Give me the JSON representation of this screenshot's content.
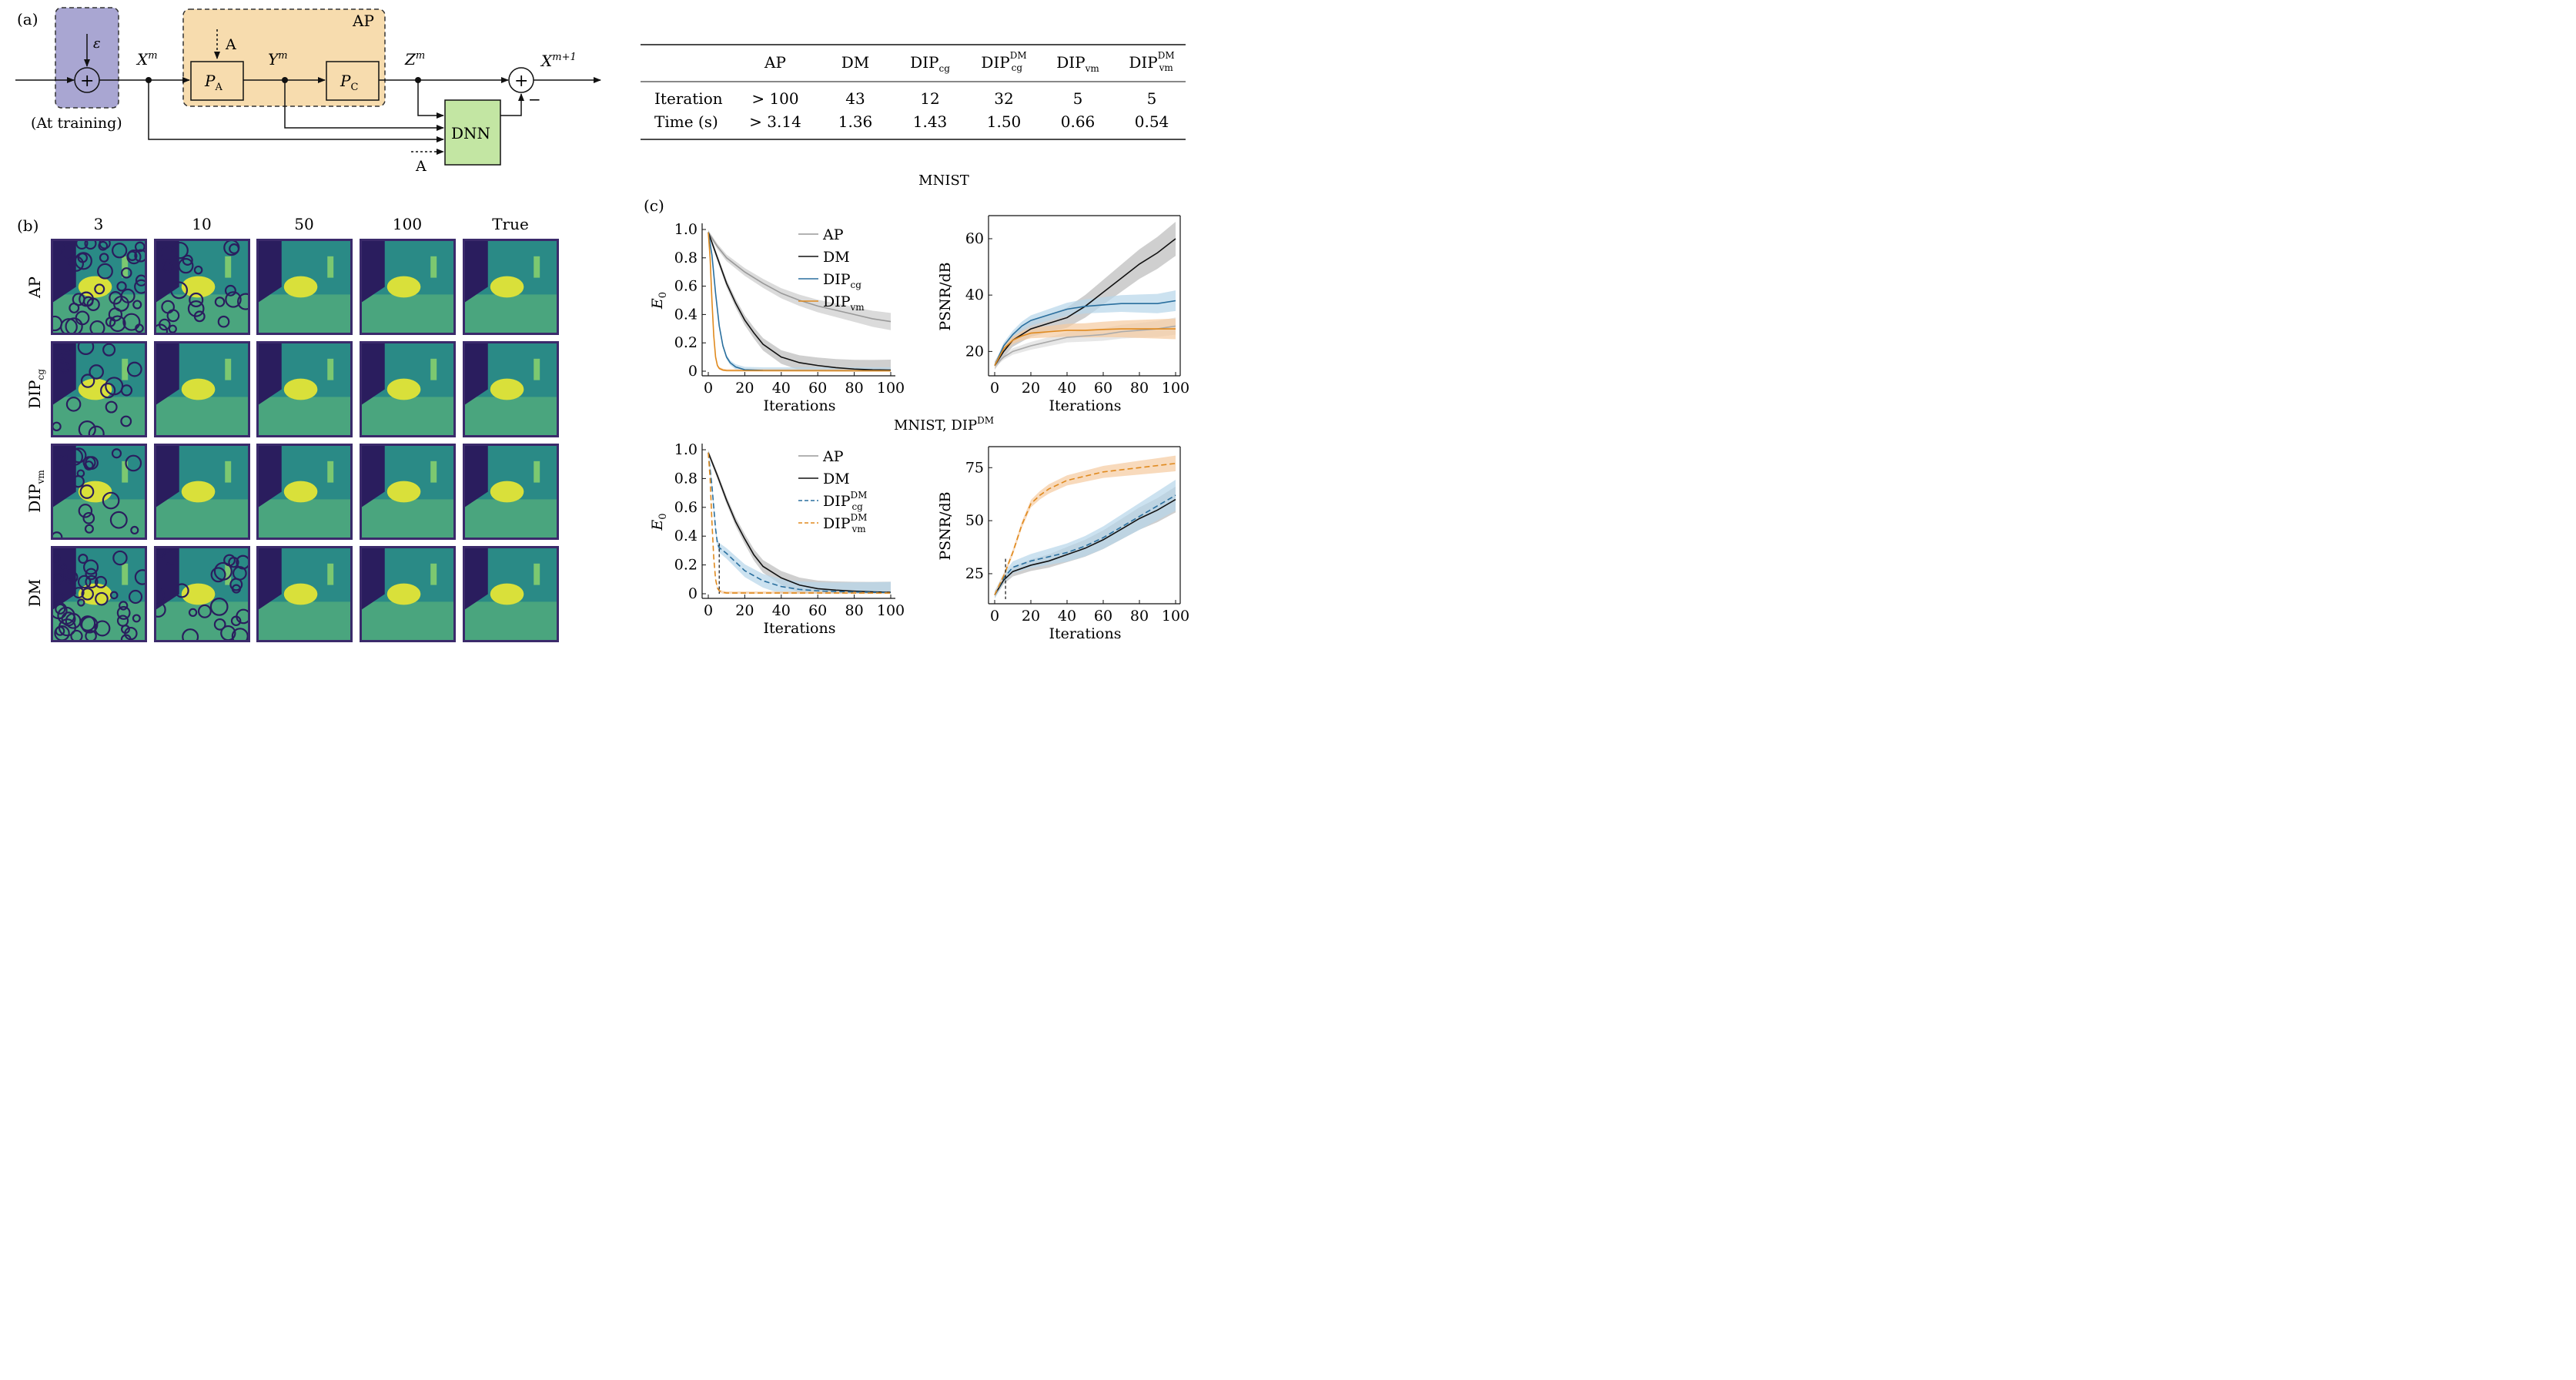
{
  "panel_labels": {
    "a": "(a)",
    "b": "(b)",
    "c": "(c)"
  },
  "diagram": {
    "epsilon": "ε",
    "training_note": "(At training)",
    "ap_box": "AP",
    "a_top": "A",
    "a_bottom": "A",
    "pa": "P",
    "pa_sub": "A",
    "pc": "P",
    "pc_sub": "C",
    "dnn": "DNN",
    "xm": "X",
    "xm_sup": "m",
    "ym": "Y",
    "ym_sup": "m",
    "zm": "Z",
    "zm_sup": "m",
    "xm1": "X",
    "xm1_sup": "m+1",
    "plus": "+",
    "minus": "−"
  },
  "table": {
    "headers": [
      "AP",
      "DM",
      "DIPcg",
      "DIPcgDM",
      "DIPvm",
      "DIPvmDM"
    ],
    "rows": [
      {
        "label": "Iteration",
        "values": [
          "> 100",
          "43",
          "12",
          "32",
          "5",
          "5"
        ]
      },
      {
        "label": "Time (s)",
        "values": [
          "> 3.14",
          "1.36",
          "1.43",
          "1.50",
          "0.66",
          "0.54"
        ]
      }
    ]
  },
  "grid": {
    "cols": [
      "3",
      "10",
      "50",
      "100",
      "True"
    ],
    "rows": [
      "AP",
      "DIPcg",
      "DIPvm",
      "DM"
    ]
  },
  "titles": {
    "top": "MNIST",
    "bottom": "MNIST, DIP"
  },
  "chart_data": [
    {
      "type": "line",
      "title": "MNIST",
      "xlabel": "Iterations",
      "ylabel": "E0",
      "xlim": [
        0,
        100
      ],
      "ylim": [
        0,
        1.0
      ],
      "xticks": [
        "0",
        "20",
        "40",
        "60",
        "80",
        "100"
      ],
      "yticks": [
        "0",
        "0.2",
        "0.4",
        "0.6",
        "0.8",
        "1.0"
      ],
      "legend": "top-right",
      "series": [
        {
          "name": "AP",
          "color": "#999999",
          "x": [
            0,
            5,
            10,
            20,
            30,
            40,
            50,
            60,
            70,
            80,
            90,
            100
          ],
          "y": [
            0.98,
            0.88,
            0.8,
            0.7,
            0.62,
            0.55,
            0.5,
            0.46,
            0.43,
            0.4,
            0.37,
            0.35
          ]
        },
        {
          "name": "DM",
          "color": "#111111",
          "x": [
            0,
            5,
            10,
            15,
            20,
            25,
            30,
            40,
            50,
            60,
            70,
            80,
            90,
            100
          ],
          "y": [
            0.98,
            0.8,
            0.62,
            0.48,
            0.36,
            0.27,
            0.19,
            0.1,
            0.06,
            0.04,
            0.025,
            0.015,
            0.01,
            0.008
          ]
        },
        {
          "name": "DIPcg",
          "color": "#2a6f9e",
          "x": [
            0,
            2,
            4,
            6,
            8,
            10,
            12,
            15,
            20,
            30,
            100
          ],
          "y": [
            0.98,
            0.82,
            0.55,
            0.32,
            0.18,
            0.1,
            0.06,
            0.03,
            0.01,
            0.005,
            0.003
          ]
        },
        {
          "name": "DIPvm",
          "color": "#e08a1e",
          "x": [
            0,
            1,
            2,
            3,
            4,
            5,
            6,
            8,
            10,
            100
          ],
          "y": [
            0.98,
            0.8,
            0.5,
            0.25,
            0.1,
            0.04,
            0.02,
            0.008,
            0.004,
            0.002
          ]
        }
      ]
    },
    {
      "type": "line",
      "xlabel": "Iterations",
      "ylabel": "PSNR/dB",
      "xlim": [
        0,
        100
      ],
      "ylim": [
        13,
        66
      ],
      "xticks": [
        "0",
        "20",
        "40",
        "60",
        "80",
        "100"
      ],
      "yticks": [
        "20",
        "40",
        "60"
      ],
      "series": [
        {
          "name": "AP",
          "color": "#aaaaaa",
          "x": [
            0,
            5,
            10,
            20,
            30,
            40,
            50,
            60,
            70,
            80,
            90,
            100
          ],
          "y": [
            15,
            18,
            20,
            22,
            23.5,
            25,
            25.5,
            26,
            27,
            27.5,
            28,
            29
          ]
        },
        {
          "name": "DM",
          "color": "#111111",
          "x": [
            0,
            5,
            10,
            20,
            30,
            40,
            50,
            60,
            70,
            80,
            90,
            100
          ],
          "y": [
            15,
            20,
            24,
            28,
            30,
            32,
            36,
            41,
            46,
            51,
            55,
            60
          ]
        },
        {
          "name": "DIPcg",
          "color": "#2a6f9e",
          "x": [
            0,
            5,
            10,
            15,
            20,
            30,
            40,
            50,
            60,
            70,
            80,
            90,
            100
          ],
          "y": [
            15,
            22,
            26,
            29,
            31,
            33,
            35,
            36,
            36.5,
            37,
            37,
            37,
            38
          ]
        },
        {
          "name": "DIPvm",
          "color": "#e08a1e",
          "x": [
            0,
            5,
            10,
            15,
            20,
            30,
            40,
            50,
            60,
            70,
            80,
            90,
            100
          ],
          "y": [
            15,
            21,
            24,
            25.5,
            26.5,
            27,
            27.5,
            27.5,
            27.8,
            28,
            28,
            28,
            28
          ]
        }
      ]
    },
    {
      "type": "line",
      "title": "MNIST, DIPDM",
      "xlabel": "Iterations",
      "ylabel": "E0",
      "xlim": [
        0,
        100
      ],
      "ylim": [
        0,
        1.0
      ],
      "xticks": [
        "0",
        "20",
        "40",
        "60",
        "80",
        "100"
      ],
      "yticks": [
        "0",
        "0.2",
        "0.4",
        "0.6",
        "0.8",
        "1.0"
      ],
      "legend": "top-right",
      "series": [
        {
          "name": "AP",
          "color": "#999999",
          "x": [],
          "y": []
        },
        {
          "name": "DM",
          "color": "#111111",
          "x": [
            0,
            5,
            10,
            15,
            20,
            25,
            30,
            40,
            50,
            60,
            70,
            80,
            90,
            100
          ],
          "y": [
            0.98,
            0.82,
            0.65,
            0.5,
            0.38,
            0.27,
            0.19,
            0.11,
            0.06,
            0.035,
            0.025,
            0.018,
            0.013,
            0.01
          ]
        },
        {
          "name": "DIPcgDM",
          "color": "#2a6f9e",
          "x": [
            0,
            2,
            4,
            5,
            6,
            10,
            15,
            20,
            30,
            40,
            50,
            60,
            70,
            80,
            90,
            100
          ],
          "y": [
            0.98,
            0.75,
            0.45,
            0.35,
            0.32,
            0.28,
            0.22,
            0.16,
            0.09,
            0.05,
            0.03,
            0.02,
            0.015,
            0.012,
            0.01,
            0.008
          ]
        },
        {
          "name": "DIPvmDM",
          "color": "#e08a1e",
          "x": [
            0,
            1,
            2,
            3,
            4,
            5,
            6,
            8,
            10,
            100
          ],
          "y": [
            0.98,
            0.8,
            0.5,
            0.25,
            0.1,
            0.04,
            0.02,
            0.01,
            0.005,
            0.005
          ]
        }
      ]
    },
    {
      "type": "line",
      "xlabel": "Iterations",
      "ylabel": "PSNR/dB",
      "xlim": [
        0,
        100
      ],
      "ylim": [
        13,
        82
      ],
      "xticks": [
        "0",
        "20",
        "40",
        "60",
        "80",
        "100"
      ],
      "yticks": [
        "25",
        "50",
        "75"
      ],
      "series": [
        {
          "name": "DM",
          "color": "#111111",
          "x": [
            0,
            5,
            10,
            20,
            30,
            40,
            50,
            60,
            70,
            80,
            90,
            100
          ],
          "y": [
            15,
            22,
            26,
            29,
            31,
            34,
            37,
            41,
            46,
            51,
            55,
            60
          ]
        },
        {
          "name": "DIPcgDM",
          "color": "#2a6f9e",
          "x": [
            0,
            5,
            10,
            20,
            30,
            40,
            50,
            60,
            70,
            80,
            90,
            100
          ],
          "y": [
            15,
            23,
            28,
            31,
            33,
            35,
            38,
            42,
            47,
            52,
            57,
            62
          ]
        },
        {
          "name": "DIPvmDM",
          "color": "#e08a1e",
          "x": [
            0,
            5,
            10,
            15,
            20,
            25,
            30,
            40,
            50,
            60,
            70,
            80,
            90,
            100
          ],
          "y": [
            15,
            24,
            35,
            48,
            58,
            62,
            65,
            69,
            71,
            73,
            74,
            75,
            76,
            77
          ]
        }
      ]
    }
  ]
}
